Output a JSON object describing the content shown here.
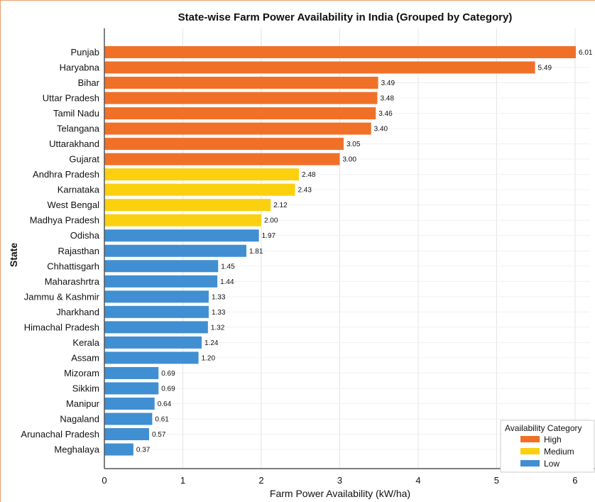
{
  "chart_data": {
    "type": "bar",
    "orientation": "horizontal",
    "title": "State-wise Farm Power Availability in India (Grouped by Category)",
    "xlabel": "Farm Power Availability (kW/ha)",
    "ylabel": "State",
    "xlim": [
      0,
      6.1
    ],
    "xticks": [
      0,
      1,
      2,
      3,
      4,
      5,
      6
    ],
    "grid": true,
    "categories": [
      "Punjab",
      "Haryabna",
      "Bihar",
      "Uttar Pradesh",
      "Tamil Nadu",
      "Telangana",
      "Uttarakhand",
      "Gujarat",
      "Andhra Pradesh",
      "Karnataka",
      "West Bengal",
      "Madhya Pradesh",
      "Odisha",
      "Rajasthan",
      "Chhattisgarh",
      "Maharashrtra",
      "Jammu & Kashmir",
      "Jharkhand",
      "Himachal Pradesh",
      "Kerala",
      "Assam",
      "Mizoram",
      "Sikkim",
      "Manipur",
      "Nagaland",
      "Arunachal Pradesh",
      "Meghalaya"
    ],
    "values": [
      6.01,
      5.49,
      3.49,
      3.48,
      3.46,
      3.4,
      3.05,
      3.0,
      2.48,
      2.43,
      2.12,
      2.0,
      1.97,
      1.81,
      1.45,
      1.44,
      1.33,
      1.33,
      1.32,
      1.24,
      1.2,
      0.69,
      0.69,
      0.64,
      0.61,
      0.57,
      0.37
    ],
    "value_labels": [
      "6.01",
      "5.49",
      "3.49",
      "3.48",
      "3.46",
      "3.40",
      "3.05",
      "3.00",
      "2.48",
      "2.43",
      "2.12",
      "2.00",
      "1.97",
      "1.81",
      "1.45",
      "1.44",
      "1.33",
      "1.33",
      "1.32",
      "1.24",
      "1.20",
      "0.69",
      "0.69",
      "0.64",
      "0.61",
      "0.57",
      "0.37"
    ],
    "groups": [
      "High",
      "High",
      "High",
      "High",
      "High",
      "High",
      "High",
      "High",
      "Medium",
      "Medium",
      "Medium",
      "Medium",
      "Low",
      "Low",
      "Low",
      "Low",
      "Low",
      "Low",
      "Low",
      "Low",
      "Low",
      "Low",
      "Low",
      "Low",
      "Low",
      "Low",
      "Low"
    ],
    "legend": {
      "title": "Availability Category",
      "placement": "bottom-right",
      "entries": [
        {
          "name": "High",
          "color": "#f07028"
        },
        {
          "name": "Medium",
          "color": "#fbd00e"
        },
        {
          "name": "Low",
          "color": "#3f8fd2"
        }
      ]
    }
  }
}
